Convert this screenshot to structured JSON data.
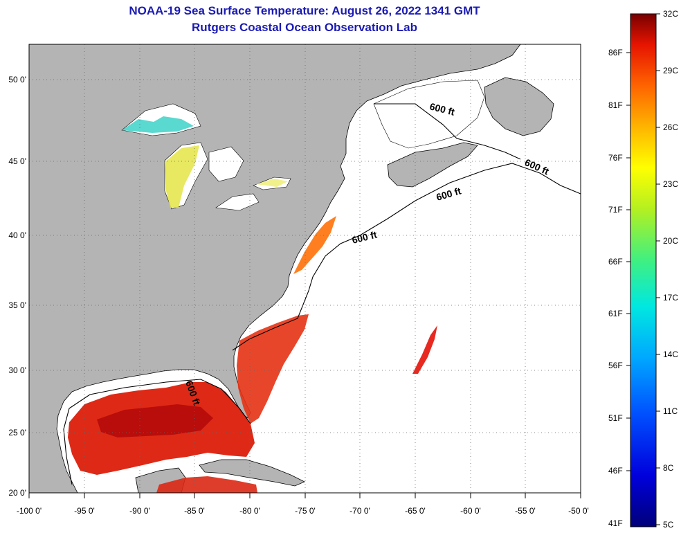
{
  "title_line1": "NOAA-19 Sea Surface Temperature:  August 26, 2022 1341 GMT",
  "title_line2": "Rutgers Coastal Ocean Observation Lab",
  "map": {
    "x_ticks": [
      "-100 0'",
      "-95 0'",
      "-90 0'",
      "-85 0'",
      "-80 0'",
      "-75 0'",
      "-70 0'",
      "-65 0'",
      "-60 0'",
      "-55 0'",
      "-50 0'"
    ],
    "y_ticks": [
      "20 0'",
      "25 0'",
      "30 0'",
      "35 0'",
      "40 0'",
      "45 0'",
      "50 0'"
    ],
    "contour_label": "600 ft",
    "colors": {
      "land": "#b4b4b4",
      "ocean_nodata": "#ffffff"
    }
  },
  "colorbar": {
    "celsius": [
      "32C",
      "29C",
      "26C",
      "23C",
      "20C",
      "17C",
      "14C",
      "11C",
      "8C",
      "5C"
    ],
    "fahrenheit": [
      "86F",
      "81F",
      "76F",
      "71F",
      "66F",
      "61F",
      "56F",
      "51F",
      "46F",
      "41F"
    ]
  }
}
